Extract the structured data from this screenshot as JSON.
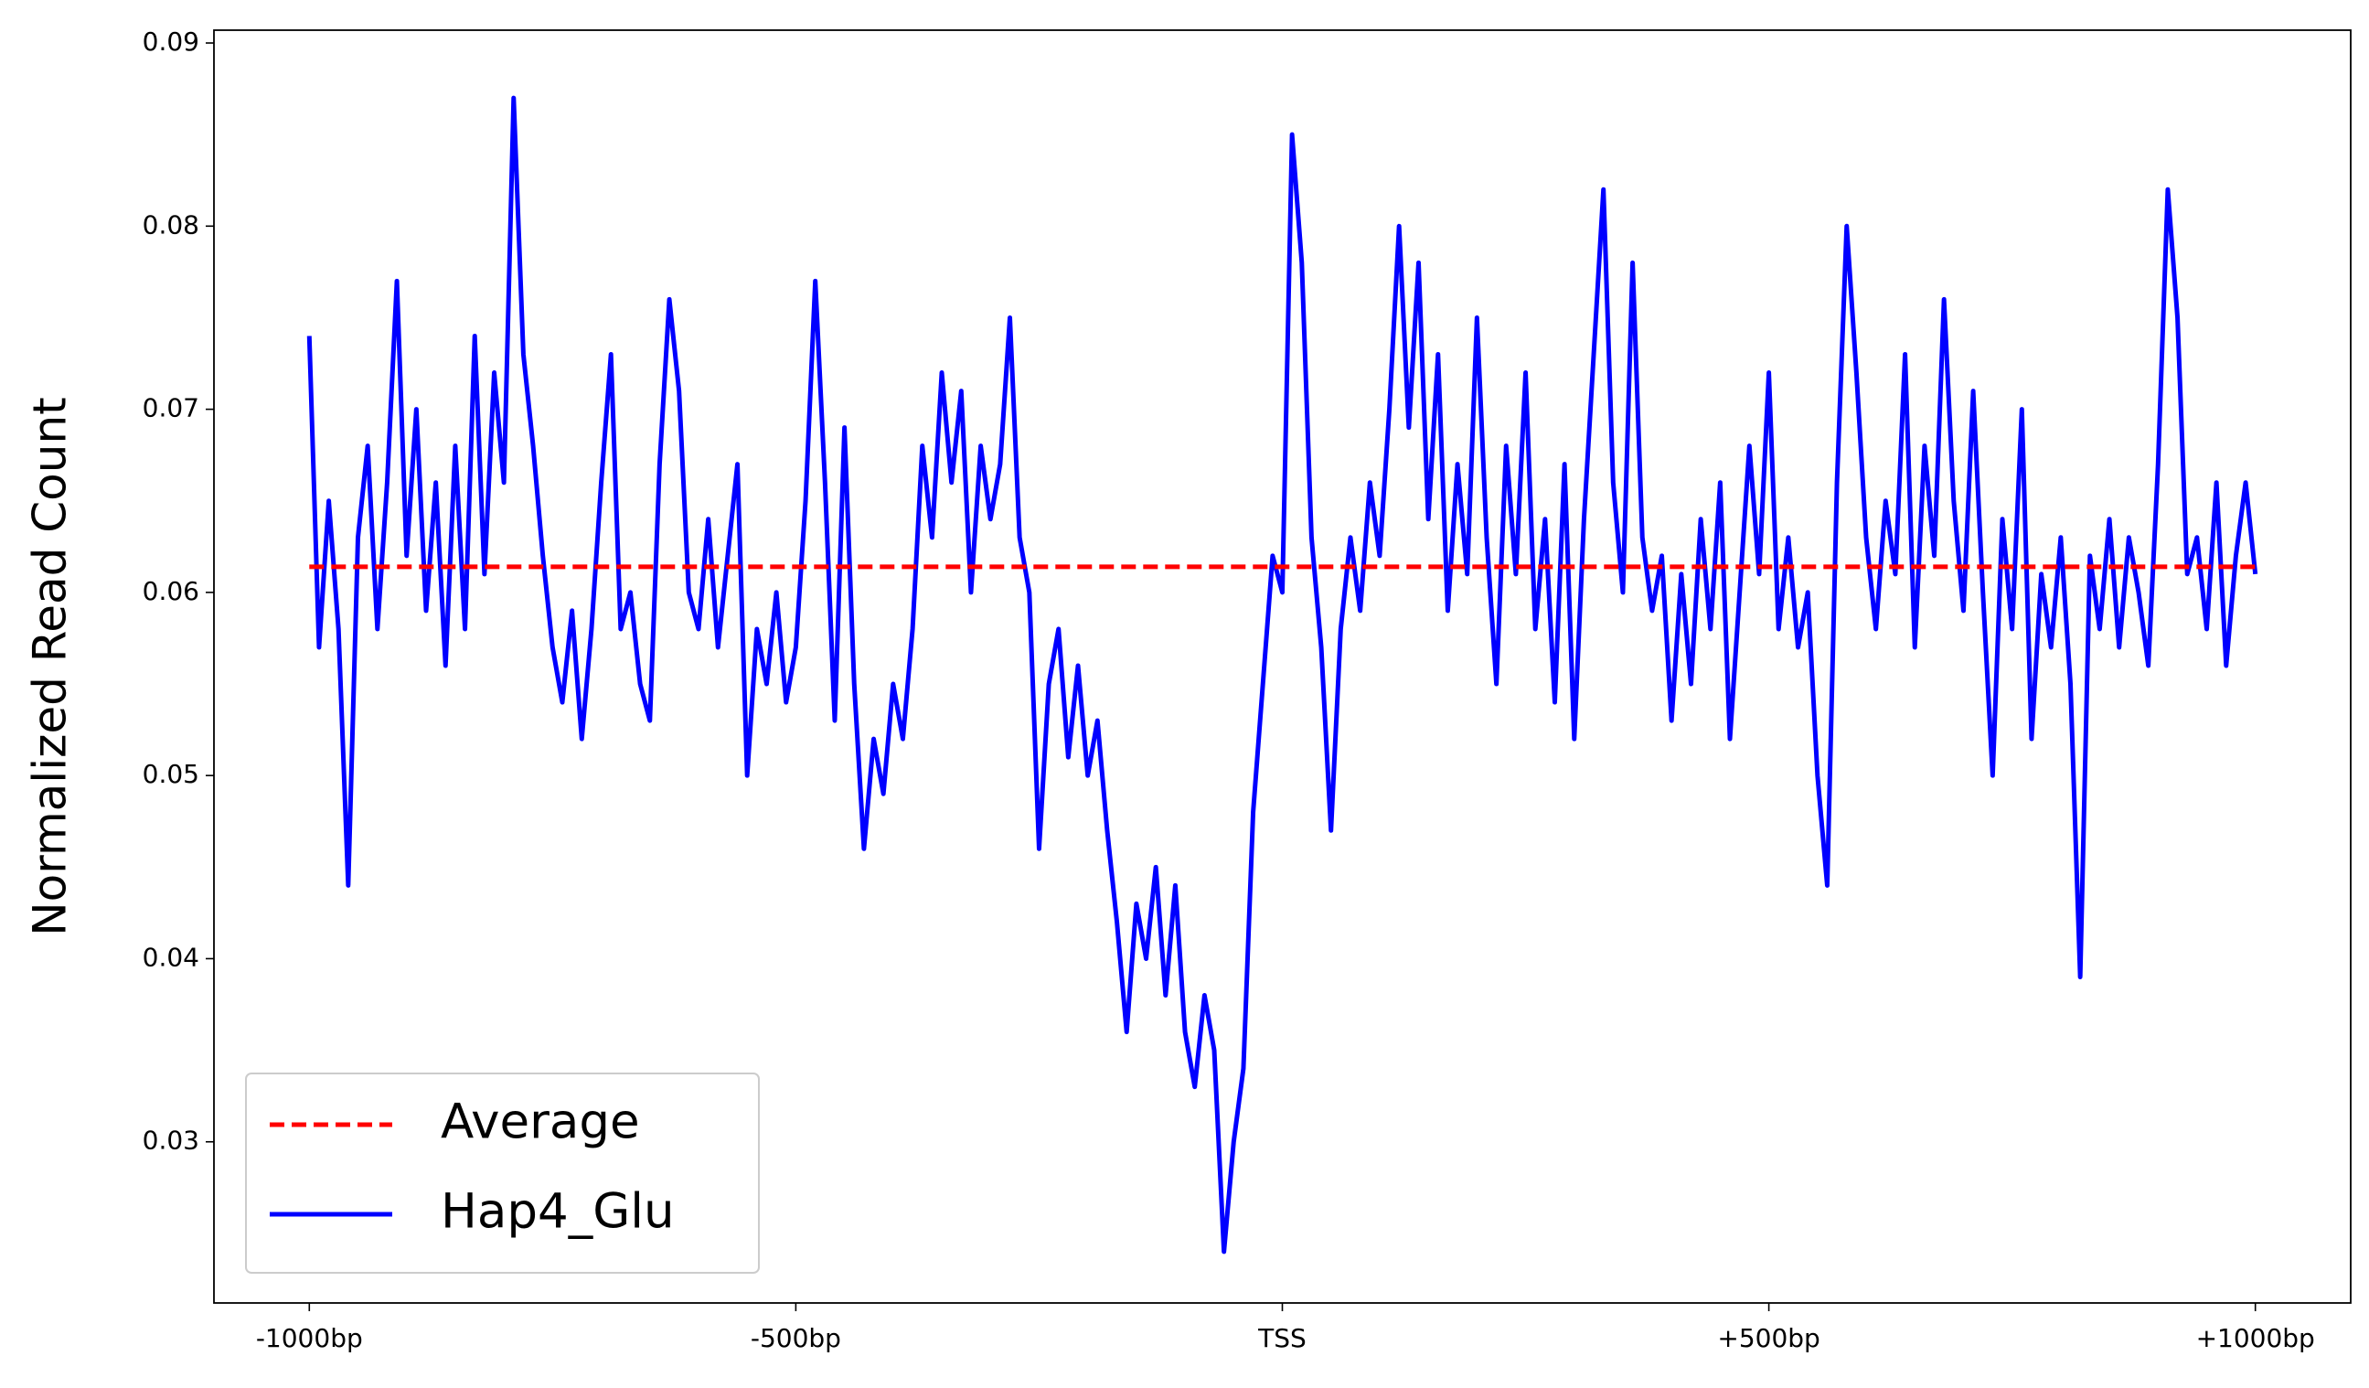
{
  "chart_data": {
    "type": "line",
    "ylabel": "Normalized Read Count",
    "xlim": [
      -1098,
      1098
    ],
    "ylim": [
      0.0212,
      0.0907
    ],
    "xticks": [
      {
        "value": -1000,
        "label": "-1000bp"
      },
      {
        "value": -500,
        "label": "-500bp"
      },
      {
        "value": 0,
        "label": "TSS"
      },
      {
        "value": 500,
        "label": "+500bp"
      },
      {
        "value": 1000,
        "label": "+1000bp"
      }
    ],
    "yticks": [
      0.03,
      0.04,
      0.05,
      0.06,
      0.07,
      0.08,
      0.09
    ],
    "legend": "lower left",
    "series": [
      {
        "name": "Average",
        "color": "#ff0000",
        "dash": true,
        "x": [
          -1000,
          1000
        ],
        "values": [
          0.0614,
          0.0614
        ]
      },
      {
        "name": "Hap4_Glu",
        "color": "#0000ff",
        "dash": false,
        "x": [
          -1000,
          -990,
          -980,
          -970,
          -960,
          -950,
          -940,
          -930,
          -920,
          -910,
          -900,
          -890,
          -880,
          -870,
          -860,
          -850,
          -840,
          -830,
          -820,
          -810,
          -800,
          -790,
          -780,
          -770,
          -760,
          -750,
          -740,
          -730,
          -720,
          -710,
          -700,
          -690,
          -680,
          -670,
          -660,
          -650,
          -640,
          -630,
          -620,
          -610,
          -600,
          -590,
          -580,
          -570,
          -560,
          -550,
          -540,
          -530,
          -520,
          -510,
          -500,
          -490,
          -480,
          -470,
          -460,
          -450,
          -440,
          -430,
          -420,
          -410,
          -400,
          -390,
          -380,
          -370,
          -360,
          -350,
          -340,
          -330,
          -320,
          -310,
          -300,
          -290,
          -280,
          -270,
          -260,
          -250,
          -240,
          -230,
          -220,
          -210,
          -200,
          -190,
          -180,
          -170,
          -160,
          -150,
          -140,
          -130,
          -120,
          -110,
          -100,
          -90,
          -80,
          -70,
          -60,
          -50,
          -40,
          -30,
          -20,
          -10,
          0,
          10,
          20,
          30,
          40,
          50,
          60,
          70,
          80,
          90,
          100,
          110,
          120,
          130,
          140,
          150,
          160,
          170,
          180,
          190,
          200,
          210,
          220,
          230,
          240,
          250,
          260,
          270,
          280,
          290,
          300,
          310,
          320,
          330,
          340,
          350,
          360,
          370,
          380,
          390,
          400,
          410,
          420,
          430,
          440,
          450,
          460,
          470,
          480,
          490,
          500,
          510,
          520,
          530,
          540,
          550,
          560,
          570,
          580,
          590,
          600,
          610,
          620,
          630,
          640,
          650,
          660,
          670,
          680,
          690,
          700,
          710,
          720,
          730,
          740,
          750,
          760,
          770,
          780,
          790,
          800,
          810,
          820,
          830,
          840,
          850,
          860,
          870,
          880,
          890,
          900,
          910,
          920,
          930,
          940,
          950,
          960,
          970,
          980,
          990,
          1000
        ],
        "values": [
          0.074,
          0.057,
          0.065,
          0.058,
          0.044,
          0.063,
          0.068,
          0.058,
          0.066,
          0.077,
          0.062,
          0.07,
          0.059,
          0.066,
          0.056,
          0.068,
          0.058,
          0.074,
          0.061,
          0.072,
          0.066,
          0.087,
          0.073,
          0.068,
          0.062,
          0.057,
          0.054,
          0.059,
          0.052,
          0.058,
          0.066,
          0.073,
          0.058,
          0.06,
          0.055,
          0.053,
          0.067,
          0.076,
          0.071,
          0.06,
          0.058,
          0.064,
          0.057,
          0.062,
          0.067,
          0.05,
          0.058,
          0.055,
          0.06,
          0.054,
          0.057,
          0.065,
          0.077,
          0.066,
          0.053,
          0.069,
          0.055,
          0.046,
          0.052,
          0.049,
          0.055,
          0.052,
          0.058,
          0.068,
          0.063,
          0.072,
          0.066,
          0.071,
          0.06,
          0.068,
          0.064,
          0.067,
          0.075,
          0.063,
          0.06,
          0.046,
          0.055,
          0.058,
          0.051,
          0.056,
          0.05,
          0.053,
          0.047,
          0.042,
          0.036,
          0.043,
          0.04,
          0.045,
          0.038,
          0.044,
          0.036,
          0.033,
          0.038,
          0.035,
          0.024,
          0.03,
          0.034,
          0.048,
          0.055,
          0.062,
          0.06,
          0.085,
          0.078,
          0.063,
          0.057,
          0.047,
          0.058,
          0.063,
          0.059,
          0.066,
          0.062,
          0.07,
          0.08,
          0.069,
          0.078,
          0.064,
          0.073,
          0.059,
          0.067,
          0.061,
          0.075,
          0.063,
          0.055,
          0.068,
          0.061,
          0.072,
          0.058,
          0.064,
          0.054,
          0.067,
          0.052,
          0.064,
          0.073,
          0.082,
          0.066,
          0.06,
          0.078,
          0.063,
          0.059,
          0.062,
          0.053,
          0.061,
          0.055,
          0.064,
          0.058,
          0.066,
          0.052,
          0.06,
          0.068,
          0.061,
          0.072,
          0.058,
          0.063,
          0.057,
          0.06,
          0.05,
          0.044,
          0.066,
          0.08,
          0.072,
          0.063,
          0.058,
          0.065,
          0.061,
          0.073,
          0.057,
          0.068,
          0.062,
          0.076,
          0.065,
          0.059,
          0.071,
          0.06,
          0.05,
          0.064,
          0.058,
          0.07,
          0.052,
          0.061,
          0.057,
          0.063,
          0.055,
          0.039,
          0.062,
          0.058,
          0.064,
          0.057,
          0.063,
          0.06,
          0.056,
          0.067,
          0.082,
          0.075,
          0.061,
          0.063,
          0.058,
          0.066,
          0.056,
          0.062,
          0.066,
          0.061
        ]
      }
    ]
  }
}
